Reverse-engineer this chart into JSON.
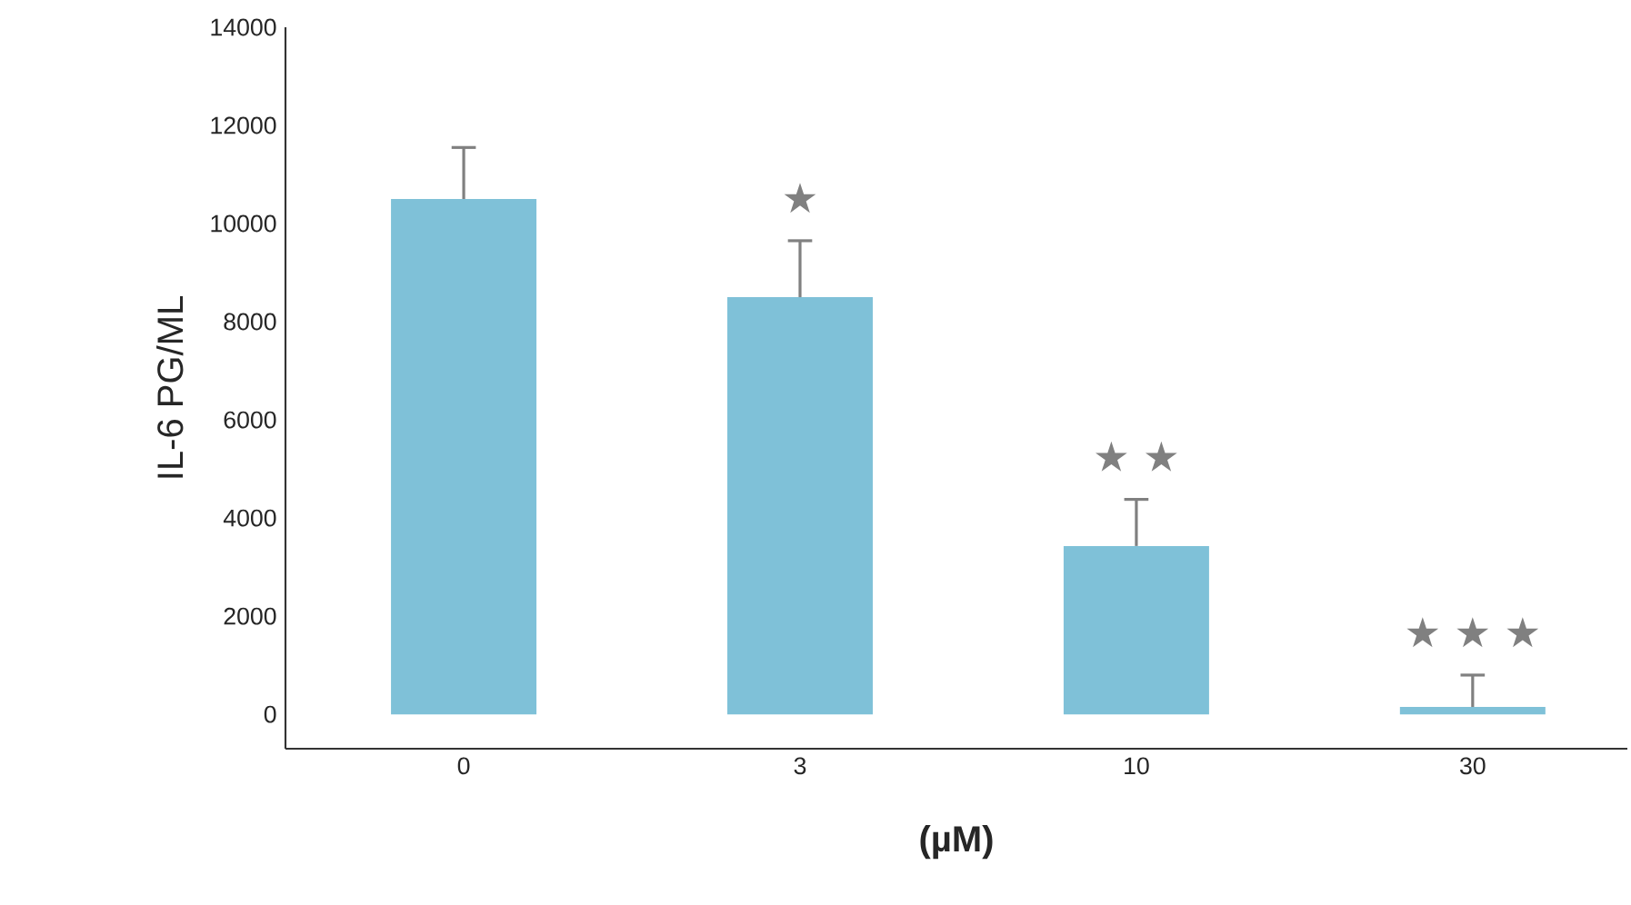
{
  "chart_data": {
    "type": "bar",
    "xlabel": "(µM)",
    "ylabel": "IL-6 PG/ML",
    "categories": [
      "0",
      "3",
      "10",
      "30"
    ],
    "values": [
      10500,
      8500,
      3430,
      150
    ],
    "errors": [
      1050,
      1150,
      950,
      650
    ],
    "color": "#7fc1d8",
    "ylim": [
      -700,
      14000
    ],
    "yticks": [
      0,
      2000,
      4000,
      6000,
      8000,
      10000,
      12000,
      14000
    ],
    "grid": false,
    "annotations": [
      "★",
      "★ ★",
      "★ ★ ★"
    ]
  }
}
